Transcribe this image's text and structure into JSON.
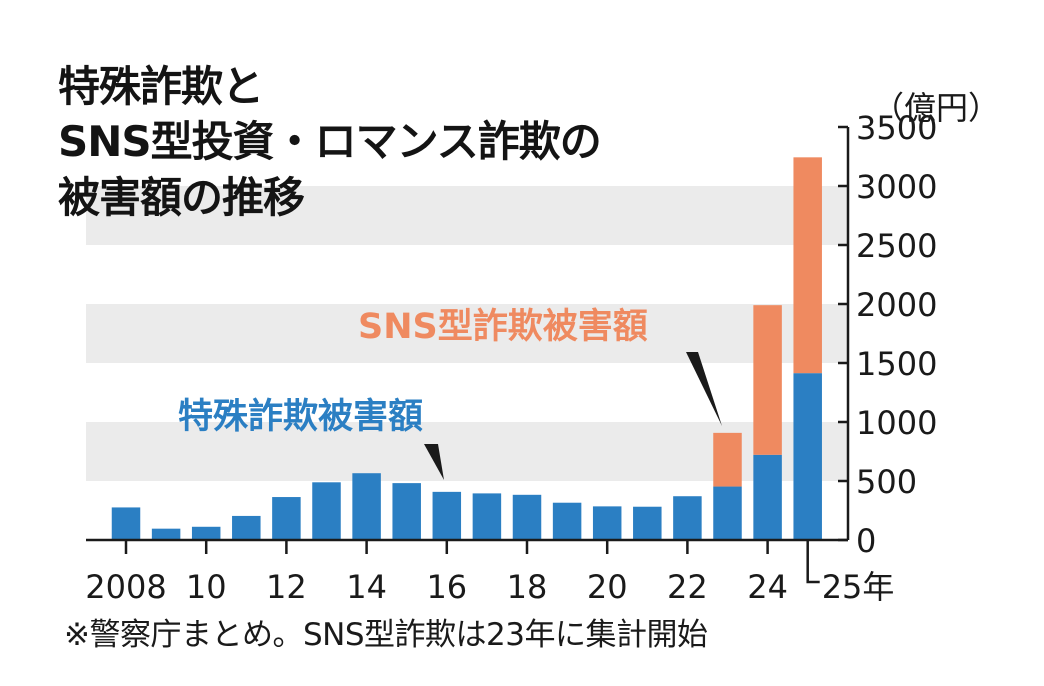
{
  "title_lines": [
    "特殊詐欺と",
    "SNS型投資・ロマンス詐欺の",
    "被害額の推移"
  ],
  "unit": "（億円）",
  "note": "※警察庁まとめ。SNS型詐欺は23年に集計開始",
  "colors": {
    "special_fraud": "#2b7fc3",
    "sns_fraud": "#ef8a60",
    "band": "#ebebeb",
    "text": "#1a1a1a"
  },
  "chart_data": {
    "type": "bar",
    "stacked": true,
    "categories": [
      "2008",
      "2009",
      "2010",
      "2011",
      "2012",
      "2013",
      "2014",
      "2015",
      "2016",
      "2017",
      "2018",
      "2019",
      "2020",
      "2021",
      "2022",
      "2023",
      "2024",
      "2025"
    ],
    "x_tick_labels": [
      {
        "category": "2008",
        "label": "2008"
      },
      {
        "category": "2010",
        "label": "10"
      },
      {
        "category": "2012",
        "label": "12"
      },
      {
        "category": "2014",
        "label": "14"
      },
      {
        "category": "2016",
        "label": "16"
      },
      {
        "category": "2018",
        "label": "18"
      },
      {
        "category": "2020",
        "label": "20"
      },
      {
        "category": "2022",
        "label": "22"
      },
      {
        "category": "2024",
        "label": "24"
      },
      {
        "category": "2025",
        "label": "25年"
      }
    ],
    "series": [
      {
        "name": "特殊詐欺被害額",
        "color": "#2b7fc3",
        "values": [
          276,
          96,
          112,
          204,
          364,
          489,
          566,
          482,
          408,
          395,
          383,
          316,
          285,
          282,
          371,
          453,
          722,
          1414
        ]
      },
      {
        "name": "SNS型詐欺被害額",
        "color": "#ef8a60",
        "values": [
          0,
          0,
          0,
          0,
          0,
          0,
          0,
          0,
          0,
          0,
          0,
          0,
          0,
          0,
          0,
          455,
          1268,
          1829
        ]
      }
    ],
    "ylim": [
      0,
      3500
    ],
    "yticks": [
      0,
      500,
      1000,
      1500,
      2000,
      2500,
      3000,
      3500
    ],
    "y_axis_side": "right",
    "grid": "alternating horizontal bands",
    "annotations": [
      {
        "text": "特殊詐欺被害額",
        "series": "特殊詐欺被害額",
        "points_to": "2016"
      },
      {
        "text": "SNS型詐欺被害額",
        "series": "SNS型詐欺被害額",
        "points_to": "2023"
      }
    ]
  }
}
